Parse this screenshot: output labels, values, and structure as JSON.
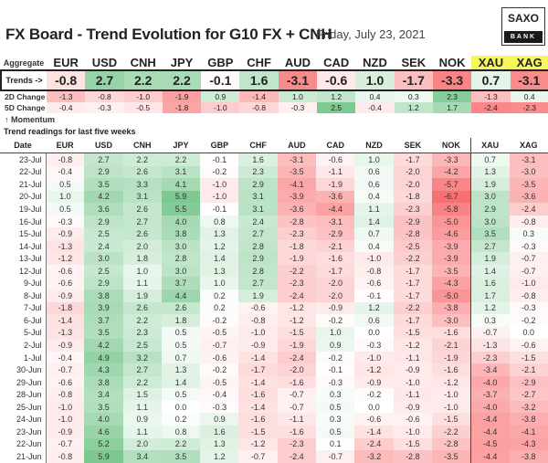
{
  "header": {
    "title": "FX Board - Trend Evolution for G10 FX + CNH",
    "date": "Friday, July 23, 2021",
    "logo_top": "SAXO",
    "logo_bottom": "BANK"
  },
  "colors": {
    "positive": "#63BE7B",
    "negative": "#F8696B",
    "neutral": "#FFFFFF",
    "metal_header": "#F7F75A"
  },
  "currencies": [
    "EUR",
    "USD",
    "CNH",
    "JPY",
    "GBP",
    "CHF",
    "AUD",
    "CAD",
    "NZD",
    "SEK",
    "NOK",
    "XAU",
    "XAG"
  ],
  "aggregate": {
    "label": "Aggregate",
    "trends_label": "Trends ->",
    "trends": [
      -0.8,
      2.7,
      2.2,
      2.2,
      -0.1,
      1.6,
      -3.1,
      -0.6,
      1.0,
      -1.7,
      -3.3,
      0.7,
      -3.1
    ],
    "change_2d_label": "2D Change",
    "change_2d": [
      -1.3,
      -0.8,
      -1.0,
      -1.9,
      0.9,
      -1.4,
      1.0,
      1.2,
      0.4,
      0.3,
      2.3,
      -1.3,
      0.4
    ],
    "change_5d_label": "5D Change",
    "change_5d": [
      -0.4,
      -0.3,
      -0.5,
      -1.8,
      -1.0,
      -0.8,
      -0.3,
      2.5,
      -0.4,
      1.2,
      1.7,
      -2.4,
      -2.3
    ],
    "momentum_label": "↑ Momentum"
  },
  "history": {
    "title": "Trend readings for last five weeks",
    "date_header": "Date",
    "rows": [
      {
        "date": "23-Jul",
        "values": [
          -0.8,
          2.7,
          2.2,
          2.2,
          -0.1,
          1.6,
          -3.1,
          -0.6,
          1.0,
          -1.7,
          -3.3,
          0.7,
          -3.1
        ]
      },
      {
        "date": "22-Jul",
        "values": [
          -0.4,
          2.9,
          2.6,
          3.1,
          -0.2,
          2.3,
          -3.5,
          -1.1,
          0.6,
          -2.0,
          -4.2,
          1.3,
          -3.0
        ]
      },
      {
        "date": "21-Jul",
        "values": [
          0.5,
          3.5,
          3.3,
          4.1,
          -1.0,
          2.9,
          -4.1,
          -1.9,
          0.6,
          -2.0,
          -5.7,
          1.9,
          -3.5
        ]
      },
      {
        "date": "20-Jul",
        "values": [
          1.0,
          4.2,
          3.1,
          5.9,
          -1.0,
          3.1,
          -3.9,
          -3.6,
          0.4,
          -1.8,
          -6.7,
          3.0,
          -3.6
        ]
      },
      {
        "date": "19-Jul",
        "values": [
          0.5,
          3.6,
          2.6,
          5.5,
          -0.1,
          3.1,
          -3.6,
          -4.4,
          1.1,
          -2.3,
          -5.8,
          2.9,
          -2.4
        ]
      },
      {
        "date": "16-Jul",
        "values": [
          -0.3,
          2.9,
          2.7,
          4.0,
          0.8,
          2.4,
          -2.8,
          -3.1,
          1.4,
          -2.9,
          -5.0,
          3.0,
          -0.8
        ]
      },
      {
        "date": "15-Jul",
        "values": [
          -0.9,
          2.5,
          2.6,
          3.8,
          1.3,
          2.7,
          -2.3,
          -2.9,
          0.7,
          -2.8,
          -4.6,
          3.5,
          0.3
        ]
      },
      {
        "date": "14-Jul",
        "values": [
          -1.3,
          2.4,
          2.0,
          3.0,
          1.2,
          2.8,
          -1.8,
          -2.1,
          0.4,
          -2.5,
          -3.9,
          2.7,
          -0.3
        ]
      },
      {
        "date": "13-Jul",
        "values": [
          -1.2,
          3.0,
          1.8,
          2.8,
          1.4,
          2.9,
          -1.9,
          -1.6,
          -1.0,
          -2.2,
          -3.9,
          1.9,
          -0.7
        ]
      },
      {
        "date": "12-Jul",
        "values": [
          -0.6,
          2.5,
          1.0,
          3.0,
          1.3,
          2.8,
          -2.2,
          -1.7,
          -0.8,
          -1.7,
          -3.5,
          1.4,
          -0.7
        ]
      },
      {
        "date": "9-Jul",
        "values": [
          -0.6,
          2.9,
          1.1,
          3.7,
          1.0,
          2.7,
          -2.3,
          -2.0,
          -0.6,
          -1.7,
          -4.3,
          1.6,
          -1.0
        ]
      },
      {
        "date": "8-Jul",
        "values": [
          -0.9,
          3.8,
          1.9,
          4.4,
          0.2,
          1.9,
          -2.4,
          -2.0,
          -0.1,
          -1.7,
          -5.0,
          1.7,
          -0.8
        ]
      },
      {
        "date": "7-Jul",
        "values": [
          -1.8,
          3.9,
          2.6,
          2.6,
          0.2,
          -0.6,
          -1.2,
          -0.9,
          1.2,
          -2.2,
          -3.8,
          1.2,
          -0.3
        ]
      },
      {
        "date": "6-Jul",
        "values": [
          -1.4,
          3.7,
          2.2,
          1.8,
          -0.2,
          -0.8,
          -1.2,
          -0.2,
          0.6,
          -1.7,
          -3.0,
          0.3,
          -0.2
        ]
      },
      {
        "date": "5-Jul",
        "values": [
          -1.3,
          3.5,
          2.3,
          0.5,
          -0.5,
          -1.0,
          -1.5,
          1.0,
          0.0,
          -1.5,
          -1.6,
          -0.7,
          0.0
        ]
      },
      {
        "date": "2-Jul",
        "values": [
          -0.9,
          4.2,
          2.5,
          0.5,
          -0.7,
          -0.9,
          -1.9,
          0.9,
          -0.3,
          -1.2,
          -2.1,
          -1.3,
          -0.6
        ]
      },
      {
        "date": "1-Jul",
        "values": [
          -0.4,
          4.9,
          3.2,
          0.7,
          -0.6,
          -1.4,
          -2.4,
          -0.2,
          -1.0,
          -1.1,
          -1.9,
          -2.3,
          -1.5
        ]
      },
      {
        "date": "30-Jun",
        "values": [
          -0.7,
          4.3,
          2.7,
          1.3,
          -0.2,
          -1.7,
          -2.0,
          -0.1,
          -1.2,
          -0.9,
          -1.6,
          -3.4,
          -2.1
        ]
      },
      {
        "date": "29-Jun",
        "values": [
          -0.6,
          3.8,
          2.2,
          1.4,
          -0.5,
          -1.4,
          -1.6,
          -0.3,
          -0.9,
          -1.0,
          -1.2,
          -4.0,
          -2.9
        ]
      },
      {
        "date": "28-Jun",
        "values": [
          -0.8,
          3.4,
          1.5,
          0.5,
          -0.4,
          -1.6,
          -0.7,
          0.3,
          -0.2,
          -1.1,
          -1.0,
          -3.7,
          -2.7
        ]
      },
      {
        "date": "25-Jun",
        "values": [
          -1.0,
          3.5,
          1.1,
          0.0,
          -0.3,
          -1.4,
          -0.7,
          0.5,
          0.0,
          -0.9,
          -1.0,
          -4.0,
          -3.2
        ]
      },
      {
        "date": "24-Jun",
        "values": [
          -1.0,
          4.0,
          0.9,
          0.2,
          0.9,
          -1.6,
          -1.1,
          0.3,
          -0.6,
          -0.6,
          -1.5,
          -4.4,
          -3.8
        ]
      },
      {
        "date": "23-Jun",
        "values": [
          -0.9,
          4.6,
          1.1,
          0.8,
          1.6,
          -1.5,
          -1.6,
          0.5,
          -1.4,
          -1.0,
          -2.2,
          -4.4,
          -4.1
        ]
      },
      {
        "date": "22-Jun",
        "values": [
          -0.7,
          5.2,
          2.0,
          2.2,
          1.3,
          -1.2,
          -2.3,
          0.1,
          -2.4,
          -1.5,
          -2.8,
          -4.5,
          -4.3
        ]
      },
      {
        "date": "21-Jun",
        "values": [
          -0.8,
          5.9,
          3.4,
          3.5,
          1.2,
          -0.7,
          -2.4,
          -0.7,
          -3.2,
          -2.8,
          -3.5,
          -4.4,
          -3.8
        ]
      }
    ]
  }
}
